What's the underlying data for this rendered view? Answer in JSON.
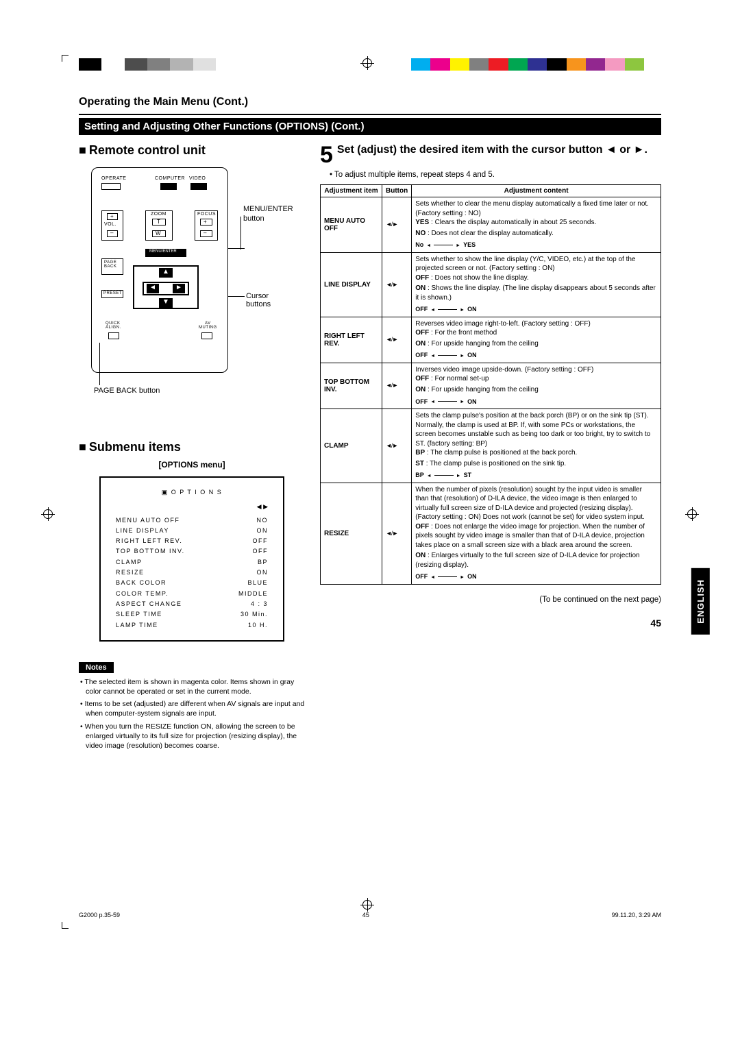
{
  "color_bar_left": [
    "#000000",
    "#ffffff",
    "#4d4d4d",
    "#808080",
    "#b3b3b3",
    "#e0e0e0"
  ],
  "color_bar_right": [
    "#00aeef",
    "#ec008c",
    "#fff200",
    "#808080",
    "#ed1c24",
    "#00a651",
    "#2e3192",
    "#000000",
    "#f7941d",
    "#92278f",
    "#f49ac1",
    "#8dc63f"
  ],
  "header": {
    "section": "Operating the Main Menu (Cont.)",
    "band": "Setting and Adjusting Other Functions (OPTIONS) (Cont.)"
  },
  "left": {
    "remote_h": "Remote control unit",
    "submenu_h": "Submenu items",
    "remote_labels": {
      "operate": "OPERATE",
      "computer": "COMPUTER",
      "video": "VIDEO",
      "vol": "VOL.",
      "zoom": "ZOOM",
      "focus": "FOCUS",
      "t": "T",
      "w": "W",
      "plus": "+",
      "minus": "–",
      "menu_enter": "MENU/ENTER",
      "page_back": "PAGE\nBACK",
      "preset": "PRESET",
      "quick": "QUICK\nALIGN.",
      "av": "AV\nMUTING",
      "r_menu": "MENU/ENTER button",
      "r_cursor": "Cursor buttons",
      "r_pageback": "PAGE BACK button"
    },
    "options_title": "[OPTIONS menu]",
    "options_head": "O P T I O N S",
    "options_nav": "◀ ▶",
    "options_rows": [
      [
        "MENU AUTO OFF",
        "NO"
      ],
      [
        "LINE DISPLAY",
        "ON"
      ],
      [
        "RIGHT LEFT REV.",
        "OFF"
      ],
      [
        "TOP BOTTOM INV.",
        "OFF"
      ],
      [
        "CLAMP",
        "BP"
      ],
      [
        "RESIZE",
        "ON"
      ],
      [
        "BACK COLOR",
        "BLUE"
      ],
      [
        "COLOR TEMP.",
        "MIDDLE"
      ],
      [
        "ASPECT CHANGE",
        "4 : 3"
      ],
      [
        "SLEEP TIME",
        "30   Min."
      ],
      [
        "LAMP TIME",
        "10   H."
      ]
    ],
    "notes_label": "Notes",
    "notes": [
      "The selected item is shown in magenta color. Items shown in gray color cannot be operated or set in the current mode.",
      "Items to be set (adjusted) are different when AV signals are input and when computer-system signals are input.",
      "When you turn the RESIZE function ON, allowing the screen to be enlarged virtually to its full size for projection (resizing display), the video image (resolution) becomes coarse."
    ]
  },
  "right": {
    "step_num": "5",
    "step_text": "Set (adjust) the desired item with the cursor button ◄ or ►.",
    "step_sub": "To adjust multiple items, repeat steps 4 and 5.",
    "th": [
      "Adjustment item",
      "Button",
      "Adjustment content"
    ],
    "rows": [
      {
        "item": "MENU AUTO OFF",
        "content_lines": [
          "Sets whether to clear the menu display automatically a fixed time later or not. (Factory setting : NO)"
        ],
        "defs": [
          [
            "YES",
            ": Clears the display automatically in about 25 seconds."
          ],
          [
            "NO",
            ": Does not clear the display automatically."
          ]
        ],
        "toggle": [
          "No",
          "YES"
        ]
      },
      {
        "item": "LINE DISPLAY",
        "content_lines": [
          "Sets whether to show the line display (Y/C, VIDEO, etc.) at the top of the projected screen or not. (Factory setting : ON)"
        ],
        "defs": [
          [
            "OFF",
            ": Does not show the line display."
          ],
          [
            "ON",
            ": Shows the line display. (The line display disappears about 5 seconds after it is shown.)"
          ]
        ],
        "toggle": [
          "OFF",
          "ON"
        ]
      },
      {
        "item": "RIGHT LEFT REV.",
        "content_lines": [
          "Reverses video image right-to-left. (Factory setting : OFF)"
        ],
        "defs": [
          [
            "OFF",
            ": For the front method"
          ],
          [
            "ON",
            ": For upside hanging from the ceiling"
          ]
        ],
        "toggle": [
          "OFF",
          "ON"
        ]
      },
      {
        "item": "TOP BOTTOM INV.",
        "content_lines": [
          "Inverses video image upside-down. (Factory setting : OFF)"
        ],
        "defs": [
          [
            "OFF",
            ": For normal set-up"
          ],
          [
            "ON",
            ": For upside hanging from the ceiling"
          ]
        ],
        "toggle": [
          "OFF",
          "ON"
        ]
      },
      {
        "item": "CLAMP",
        "content_lines": [
          "Sets the clamp pulse's position at the back porch (BP) or on the sink tip (ST). Normally, the clamp is used at BP. If, with some PCs or workstations, the screen becomes unstable such as being too dark or too bright, try to switch to ST. (factory setting: BP)"
        ],
        "defs": [
          [
            "BP",
            ": The clamp pulse is positioned at the back porch."
          ],
          [
            "ST",
            ": The clamp pulse is positioned on the sink tip."
          ]
        ],
        "toggle": [
          "BP",
          "ST"
        ]
      },
      {
        "item": "RESIZE",
        "content_lines": [
          "When the number of pixels (resolution) sought by the input video is smaller than that (resolution) of D-ILA device, the video image is then enlarged to virtually full screen size of D-ILA device and projected (resizing display). (Factory setting : ON) Does not work (cannot be set) for video system input."
        ],
        "defs": [
          [
            "OFF",
            ": Does not enlarge the video image for projection. When the number of pixels sought by video image is smaller than that of D-ILA device, projection takes place on a small screen size with a black area around the screen."
          ],
          [
            "ON",
            ": Enlarges virtually to the full screen size of D-ILA device for projection (resizing display)."
          ]
        ],
        "toggle": [
          "OFF",
          "ON"
        ]
      }
    ],
    "cont": "(To be continued on the next page)",
    "pagenum": "45"
  },
  "lang_tab": "ENGLISH",
  "footer": {
    "file": "G2000 p.35-59",
    "pg": "45",
    "ts": "99.11.20, 3:29 AM"
  }
}
